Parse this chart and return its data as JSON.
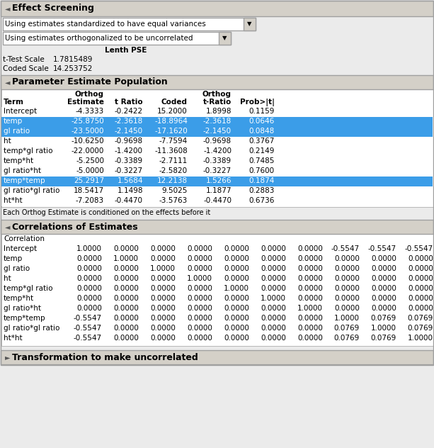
{
  "title": "Effect Screening",
  "dropdown1": "Using estimates standardized to have equal variances",
  "dropdown2": "Using estimates orthogonalized to be uncorrelated",
  "lenth_pse_label": "Lenth PSE",
  "t_test_scale_lbl": "t-Test Scale",
  "t_test_scale_val": "1.7815489",
  "coded_scale_lbl": "Coded Scale",
  "coded_scale_val": "14.253752",
  "section1_title": "Parameter Estimate Population",
  "param_col_headers_line1": [
    "Term",
    "Estimate",
    "t Ratio",
    "Orthog",
    "Orthog",
    "Prob>|t|"
  ],
  "param_col_headers_line2": [
    "",
    "",
    "",
    "Coded",
    "t-Ratio",
    ""
  ],
  "param_data": [
    [
      "Intercept",
      "-4.3333",
      "-0.2422",
      "15.2000",
      "1.8998",
      "0.1159"
    ],
    [
      "temp",
      "-25.8750",
      "-2.3618",
      "-18.8964",
      "-2.3618",
      "0.0646"
    ],
    [
      "gl ratio",
      "-23.5000",
      "-2.1450",
      "-17.1620",
      "-2.1450",
      "0.0848"
    ],
    [
      "ht",
      "-10.6250",
      "-0.9698",
      "-7.7594",
      "-0.9698",
      "0.3767"
    ],
    [
      "temp*gl ratio",
      "-22.0000",
      "-1.4200",
      "-11.3608",
      "-1.4200",
      "0.2149"
    ],
    [
      "temp*ht",
      "-5.2500",
      "-0.3389",
      "-2.7111",
      "-0.3389",
      "0.7485"
    ],
    [
      "gl ratio*ht",
      "-5.0000",
      "-0.3227",
      "-2.5820",
      "-0.3227",
      "0.7600"
    ],
    [
      "temp*temp",
      "25.2917",
      "1.5684",
      "12.2138",
      "1.5266",
      "0.1874"
    ],
    [
      "gl ratio*gl ratio",
      "18.5417",
      "1.1498",
      "9.5025",
      "1.1877",
      "0.2883"
    ],
    [
      "ht*ht",
      "-7.2083",
      "-0.4470",
      "-3.5763",
      "-0.4470",
      "0.6736"
    ]
  ],
  "highlighted_rows": [
    1,
    2,
    7
  ],
  "note": "Each Orthog Estimate is conditioned on the effects before it",
  "section2_title": "Correlations of Estimates",
  "corr_label": "Correlation",
  "corr_row_labels": [
    "Intercept",
    "temp",
    "gl ratio",
    "ht",
    "temp*gl ratio",
    "temp*ht",
    "gl ratio*ht",
    "temp*temp",
    "gl ratio*gl ratio",
    "ht*ht"
  ],
  "corr_data": [
    [
      "1.0000",
      "0.0000",
      "0.0000",
      "0.0000",
      "0.0000",
      "0.0000",
      "0.0000",
      "-0.5547",
      "-0.5547",
      "-0.5547"
    ],
    [
      "0.0000",
      "1.0000",
      "0.0000",
      "0.0000",
      "0.0000",
      "0.0000",
      "0.0000",
      "0.0000",
      "0.0000",
      "0.0000"
    ],
    [
      "0.0000",
      "0.0000",
      "1.0000",
      "0.0000",
      "0.0000",
      "0.0000",
      "0.0000",
      "0.0000",
      "0.0000",
      "0.0000"
    ],
    [
      "0.0000",
      "0.0000",
      "0.0000",
      "1.0000",
      "0.0000",
      "0.0000",
      "0.0000",
      "0.0000",
      "0.0000",
      "0.0000"
    ],
    [
      "0.0000",
      "0.0000",
      "0.0000",
      "0.0000",
      "1.0000",
      "0.0000",
      "0.0000",
      "0.0000",
      "0.0000",
      "0.0000"
    ],
    [
      "0.0000",
      "0.0000",
      "0.0000",
      "0.0000",
      "0.0000",
      "1.0000",
      "0.0000",
      "0.0000",
      "0.0000",
      "0.0000"
    ],
    [
      "0.0000",
      "0.0000",
      "0.0000",
      "0.0000",
      "0.0000",
      "0.0000",
      "1.0000",
      "0.0000",
      "0.0000",
      "0.0000"
    ],
    [
      "-0.5547",
      "0.0000",
      "0.0000",
      "0.0000",
      "0.0000",
      "0.0000",
      "0.0000",
      "1.0000",
      "0.0769",
      "0.0769"
    ],
    [
      "-0.5547",
      "0.0000",
      "0.0000",
      "0.0000",
      "0.0000",
      "0.0000",
      "0.0000",
      "0.0769",
      "1.0000",
      "0.0769"
    ],
    [
      "-0.5547",
      "0.0000",
      "0.0000",
      "0.0000",
      "0.0000",
      "0.0000",
      "0.0000",
      "0.0769",
      "0.0769",
      "1.0000"
    ]
  ],
  "section3_title": "Transformation to make uncorrelated",
  "bg_color": "#ebebeb",
  "white": "#ffffff",
  "section_hdr_bg": "#d4d0c8",
  "highlight_blue": "#3b9de8",
  "border_color": "#a0a0a0",
  "dark_border": "#808080"
}
